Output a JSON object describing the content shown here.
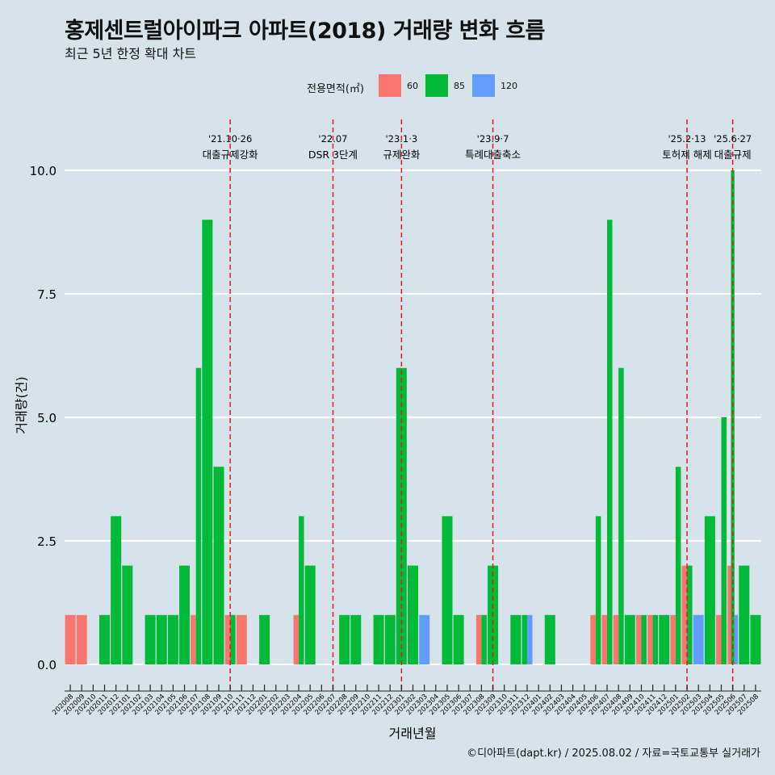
{
  "title": "홍제센트럴아이파크 아파트(2018) 거래량 변화 흐름",
  "subtitle": "최근 5년 한정 확대 차트",
  "caption": "©디아파트(dapt.kr) / 2025.08.02 / 자료=국토교통부 실거래가",
  "legend": {
    "title": "전용면적(㎡)",
    "items": [
      {
        "label": "60",
        "color": "#f8766d"
      },
      {
        "label": "85",
        "color": "#00ba38"
      },
      {
        "label": "120",
        "color": "#619cff"
      }
    ]
  },
  "chart_data": {
    "type": "bar",
    "xlabel": "거래년월",
    "ylabel": "거래량(건)",
    "ylim": [
      0,
      10
    ],
    "yticks": [
      0,
      2.5,
      5,
      7.5,
      10
    ],
    "ytick_labels": [
      "0.0",
      "2.5",
      "5.0",
      "7.5",
      "10.0"
    ],
    "grid": true,
    "categories": [
      "202008",
      "202009",
      "202010",
      "202011",
      "202012",
      "202101",
      "202102",
      "202103",
      "202104",
      "202105",
      "202106",
      "202107",
      "202108",
      "202109",
      "202110",
      "202111",
      "202112",
      "202201",
      "202202",
      "202203",
      "202204",
      "202205",
      "202206",
      "202207",
      "202208",
      "202209",
      "202210",
      "202211",
      "202212",
      "202301",
      "202302",
      "202303",
      "202304",
      "202305",
      "202306",
      "202307",
      "202308",
      "202309",
      "202310",
      "202311",
      "202312",
      "202401",
      "202402",
      "202403",
      "202404",
      "202405",
      "202406",
      "202407",
      "202408",
      "202409",
      "202410",
      "202411",
      "202412",
      "202501",
      "202502",
      "202503",
      "202504",
      "202505",
      "202506",
      "202507",
      "202508"
    ],
    "series": [
      {
        "name": "60",
        "color": "#f8766d",
        "values": [
          1,
          1,
          0,
          0,
          0,
          0,
          0,
          0,
          0,
          0,
          0,
          1,
          0,
          0,
          1,
          1,
          0,
          0,
          0,
          0,
          1,
          0,
          0,
          0,
          0,
          0,
          0,
          0,
          0,
          0,
          0,
          0,
          0,
          0,
          0,
          0,
          1,
          0,
          0,
          0,
          0,
          0,
          0,
          0,
          0,
          0,
          1,
          1,
          1,
          0,
          1,
          1,
          0,
          1,
          2,
          0,
          0,
          1,
          2,
          0,
          0
        ]
      },
      {
        "name": "85",
        "color": "#00ba38",
        "values": [
          0,
          0,
          0,
          1,
          3,
          2,
          0,
          1,
          1,
          1,
          2,
          6,
          9,
          4,
          1,
          0,
          0,
          1,
          0,
          0,
          3,
          2,
          0,
          0,
          1,
          1,
          0,
          1,
          1,
          6,
          2,
          0,
          0,
          3,
          1,
          0,
          1,
          2,
          0,
          1,
          1,
          0,
          1,
          0,
          0,
          0,
          3,
          9,
          6,
          1,
          1,
          1,
          1,
          4,
          2,
          0,
          3,
          5,
          10,
          2,
          1
        ]
      },
      {
        "name": "120",
        "color": "#619cff",
        "values": [
          0,
          0,
          0,
          0,
          0,
          0,
          0,
          0,
          0,
          0,
          0,
          0,
          0,
          0,
          0,
          0,
          0,
          0,
          0,
          0,
          0,
          0,
          0,
          0,
          0,
          0,
          0,
          0,
          0,
          0,
          0,
          1,
          0,
          0,
          0,
          0,
          0,
          0,
          0,
          0,
          1,
          0,
          0,
          0,
          0,
          0,
          0,
          0,
          0,
          0,
          0,
          0,
          0,
          0,
          0,
          1,
          0,
          0,
          1,
          0,
          0
        ]
      }
    ],
    "events": [
      {
        "category": "202110",
        "date": "'21.10·26",
        "label": "대출규제강화"
      },
      {
        "category": "202207",
        "date": "'22.07",
        "label": "DSR 3단계"
      },
      {
        "category": "202301",
        "date": "'23.1·3",
        "label": "규제완화"
      },
      {
        "category": "202309",
        "date": "'23.9·7",
        "label": "특례대출축소"
      },
      {
        "category": "202502",
        "date": "'25.2·13",
        "label": "토허제 해제"
      },
      {
        "category": "202506",
        "date": "'25.6·27",
        "label": "대출규제"
      }
    ]
  }
}
